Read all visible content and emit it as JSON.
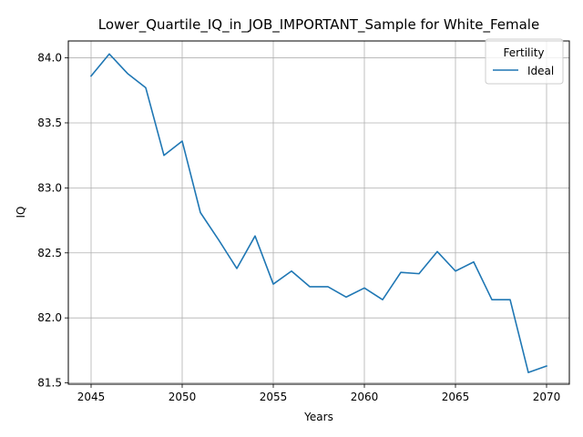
{
  "chart_data": {
    "type": "line",
    "title": "Lower_Quartile_IQ_in_JOB_IMPORTANT_Sample for White_Female",
    "xlabel": "Years",
    "ylabel": "IQ",
    "xlim": [
      2043.75,
      2071.25
    ],
    "ylim": [
      81.49,
      84.13
    ],
    "xticks": [
      2045,
      2050,
      2055,
      2060,
      2065,
      2070
    ],
    "yticks": [
      81.5,
      82.0,
      82.5,
      83.0,
      83.5,
      84.0
    ],
    "xtick_labels": [
      "2045",
      "2050",
      "2055",
      "2060",
      "2065",
      "2070"
    ],
    "ytick_labels": [
      "81.5",
      "82.0",
      "82.5",
      "83.0",
      "83.5",
      "84.0"
    ],
    "grid": true,
    "legend": {
      "title": "Fertility",
      "position": "top-right"
    },
    "x": [
      2045,
      2046,
      2047,
      2048,
      2049,
      2050,
      2051,
      2052,
      2053,
      2054,
      2055,
      2056,
      2057,
      2058,
      2059,
      2060,
      2061,
      2062,
      2063,
      2064,
      2065,
      2066,
      2067,
      2068,
      2069,
      2070
    ],
    "series": [
      {
        "name": "Ideal",
        "color": "#1f77b4",
        "values": [
          83.86,
          84.03,
          83.88,
          83.77,
          83.25,
          83.36,
          82.81,
          82.6,
          82.38,
          82.63,
          82.26,
          82.36,
          82.24,
          82.24,
          82.16,
          82.23,
          82.14,
          82.35,
          82.34,
          82.51,
          82.36,
          82.43,
          82.14,
          82.14,
          81.58,
          81.63
        ]
      }
    ]
  }
}
